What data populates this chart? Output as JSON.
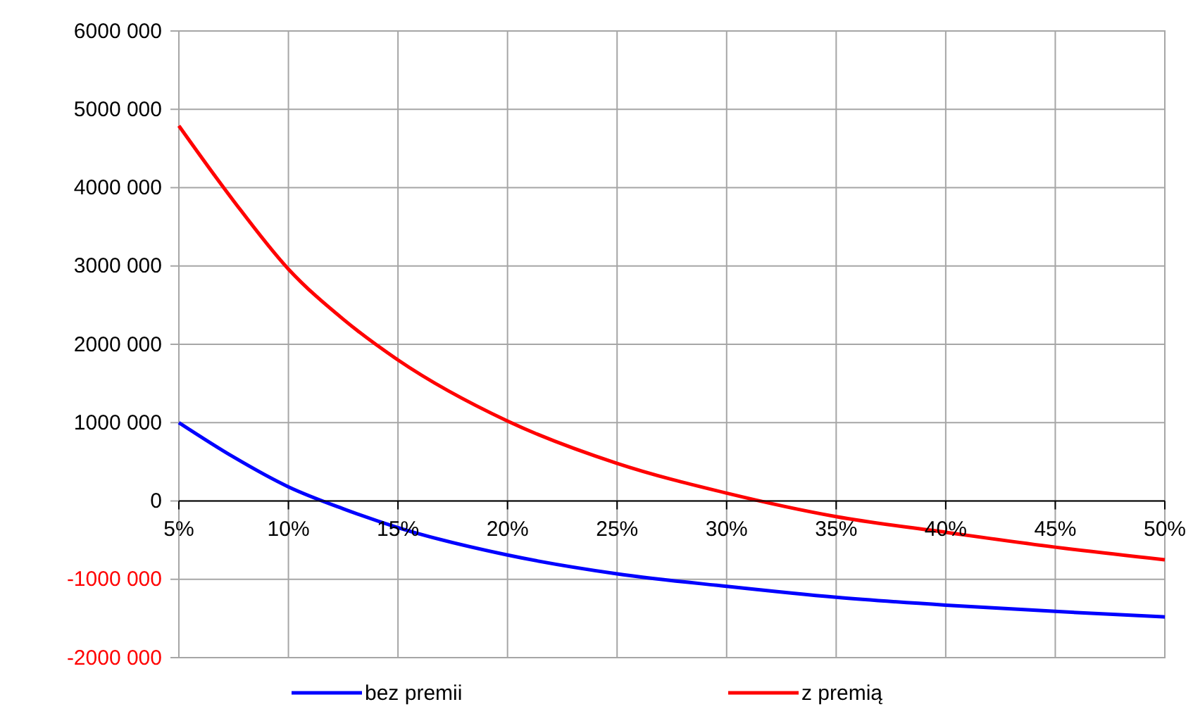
{
  "chart_data": {
    "type": "line",
    "x": [
      5,
      7.5,
      10,
      12.5,
      15,
      20,
      25,
      30,
      35,
      40,
      45,
      50
    ],
    "series": [
      {
        "name": "bez premii",
        "color": "#0000ff",
        "values": [
          1000000,
          560000,
          180000,
          -100000,
          -340000,
          -690000,
          -930000,
          -1090000,
          -1230000,
          -1330000,
          -1410000,
          -1480000
        ]
      },
      {
        "name": "z premią",
        "color": "#ff0000",
        "values": [
          4790000,
          3830000,
          2960000,
          2320000,
          1800000,
          1020000,
          480000,
          100000,
          -200000,
          -400000,
          -590000,
          -750000
        ]
      }
    ],
    "xlim": [
      5,
      50
    ],
    "xticks": [
      {
        "value": 5,
        "label": "5%"
      },
      {
        "value": 10,
        "label": "10%"
      },
      {
        "value": 15,
        "label": "15%"
      },
      {
        "value": 20,
        "label": "20%"
      },
      {
        "value": 25,
        "label": "25%"
      },
      {
        "value": 30,
        "label": "30%"
      },
      {
        "value": 35,
        "label": "35%"
      },
      {
        "value": 40,
        "label": "40%"
      },
      {
        "value": 45,
        "label": "45%"
      },
      {
        "value": 50,
        "label": "50%"
      }
    ],
    "ylim": [
      -2000000,
      6000000
    ],
    "yticks": [
      {
        "value": -2000000,
        "label": "-2000 000"
      },
      {
        "value": -1000000,
        "label": "-1000 000"
      },
      0,
      {
        "value": 1000000,
        "label": "1000 000"
      },
      {
        "value": 2000000,
        "label": "2000 000"
      },
      {
        "value": 3000000,
        "label": "3000 000"
      },
      {
        "value": 4000000,
        "label": "4000 000"
      },
      {
        "value": 5000000,
        "label": "5000 000"
      },
      {
        "value": 6000000,
        "label": "6000 000"
      }
    ],
    "grid": true,
    "legend": "bottom",
    "marker": "none",
    "line_style": "solid"
  }
}
